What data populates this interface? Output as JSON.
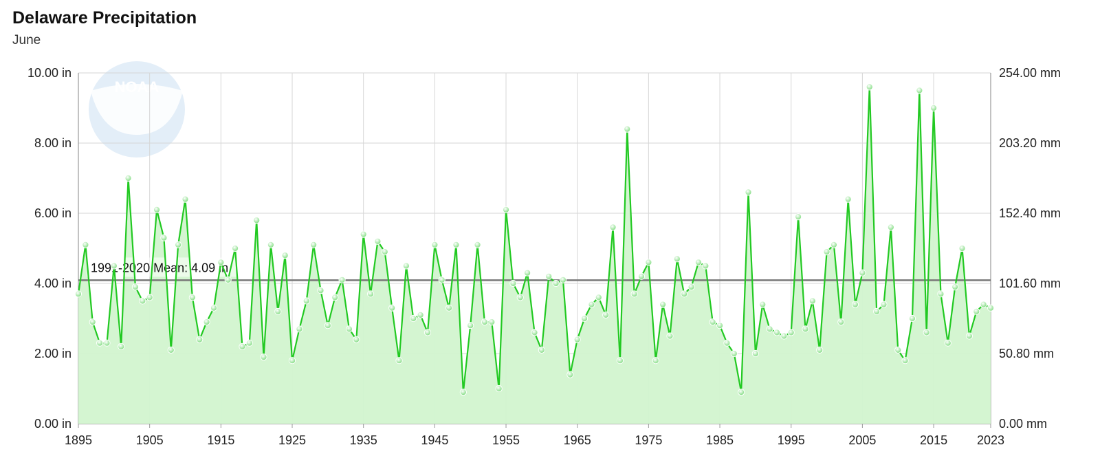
{
  "header": {
    "title": "Delaware Precipitation",
    "subtitle": "June"
  },
  "logo": {
    "text": "NOAA"
  },
  "colors": {
    "line": "#22c922",
    "area": "#d2f4cf",
    "grid": "#d6d6d6",
    "mean": "#777777"
  },
  "chart_data": {
    "type": "area",
    "title": "Delaware Precipitation",
    "subtitle": "June",
    "x_start": 1895,
    "x_end": 2023,
    "ylim": [
      0,
      10
    ],
    "y_ticks": [
      "0.00 in",
      "2.00 in",
      "4.00 in",
      "6.00 in",
      "8.00 in",
      "10.00 in"
    ],
    "y2_ticks": [
      "0.00 mm",
      "50.80 mm",
      "101.60 mm",
      "152.40 mm",
      "203.20 mm",
      "254.00 mm"
    ],
    "x_ticks": [
      "1895",
      "1905",
      "1915",
      "1925",
      "1935",
      "1945",
      "1955",
      "1965",
      "1975",
      "1985",
      "1995",
      "2005",
      "2015",
      "2023"
    ],
    "mean": {
      "label": "1991-2020 Mean: 4.09 in",
      "value": 4.09
    },
    "grid": true,
    "series": [
      {
        "values": [
          3.7,
          5.1,
          2.9,
          2.3,
          2.3,
          4.5,
          2.2,
          7.0,
          3.9,
          3.5,
          3.6,
          6.1,
          5.3,
          2.1,
          5.1,
          6.4,
          3.6,
          2.4,
          2.9,
          3.3,
          4.6,
          4.1,
          5.0,
          2.2,
          2.3,
          5.8,
          1.9,
          5.1,
          3.2,
          4.8,
          1.8,
          2.7,
          3.5,
          5.1,
          3.8,
          2.8,
          3.6,
          4.1,
          2.7,
          2.4,
          5.4,
          3.7,
          5.2,
          4.9,
          3.3,
          1.8,
          4.5,
          3.0,
          3.1,
          2.6,
          5.1,
          4.1,
          3.3,
          5.1,
          0.9,
          2.8,
          5.1,
          2.9,
          2.9,
          1.0,
          6.1,
          4.0,
          3.6,
          4.3,
          2.6,
          2.1,
          4.2,
          4.0,
          4.1,
          1.4,
          2.4,
          3.0,
          3.4,
          3.6,
          3.1,
          5.6,
          1.8,
          8.4,
          3.7,
          4.2,
          4.6,
          1.8,
          3.4,
          2.5,
          4.7,
          3.7,
          3.9,
          4.6,
          4.5,
          2.9,
          2.8,
          2.3,
          2.0,
          0.9,
          6.6,
          2.0,
          3.4,
          2.7,
          2.6,
          2.5,
          2.6,
          5.9,
          2.7,
          3.5,
          2.1,
          4.9,
          5.1,
          2.9,
          6.4,
          3.4,
          4.3,
          9.6,
          3.2,
          3.4,
          5.6,
          2.1,
          1.8,
          3.0,
          9.5,
          2.6,
          9.0,
          3.7,
          2.3,
          3.9,
          5.0,
          2.5,
          3.2,
          3.4,
          3.3
        ]
      }
    ]
  }
}
